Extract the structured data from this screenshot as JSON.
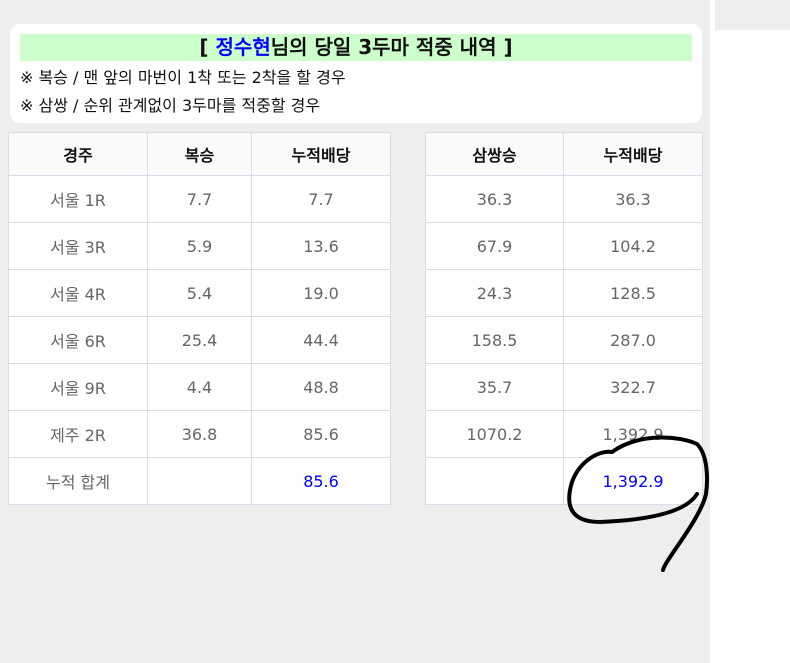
{
  "header": {
    "title_prefix": "[ ",
    "title_name": "정수현",
    "title_suffix": "님의 당일 3두마 적중 내역 ]",
    "notes": [
      "※ 복승 / 맨 앞의 마번이 1착 또는 2착을 할 경우",
      "※ 삼쌍 / 순위 관계없이 3두마를 적중할 경우"
    ]
  },
  "left_table": {
    "headers": [
      "경주",
      "복승",
      "누적배당"
    ],
    "rows": [
      [
        "서울 1R",
        "7.7",
        "7.7"
      ],
      [
        "서울 3R",
        "5.9",
        "13.6"
      ],
      [
        "서울 4R",
        "5.4",
        "19.0"
      ],
      [
        "서울 6R",
        "25.4",
        "44.4"
      ],
      [
        "서울 9R",
        "4.4",
        "48.8"
      ],
      [
        "제주 2R",
        "36.8",
        "85.6"
      ]
    ],
    "total": [
      "누적 합계",
      "",
      "85.6"
    ]
  },
  "right_table": {
    "headers": [
      "삼쌍승",
      "누적배당"
    ],
    "rows": [
      [
        "36.3",
        "36.3"
      ],
      [
        "67.9",
        "104.2"
      ],
      [
        "24.3",
        "128.5"
      ],
      [
        "158.5",
        "287.0"
      ],
      [
        "35.7",
        "322.7"
      ],
      [
        "1070.2",
        "1,392.9"
      ]
    ],
    "total": [
      "",
      "1,392.9"
    ]
  },
  "colors": {
    "accent": "#0000ff",
    "title_bg": "#ccffcc"
  }
}
